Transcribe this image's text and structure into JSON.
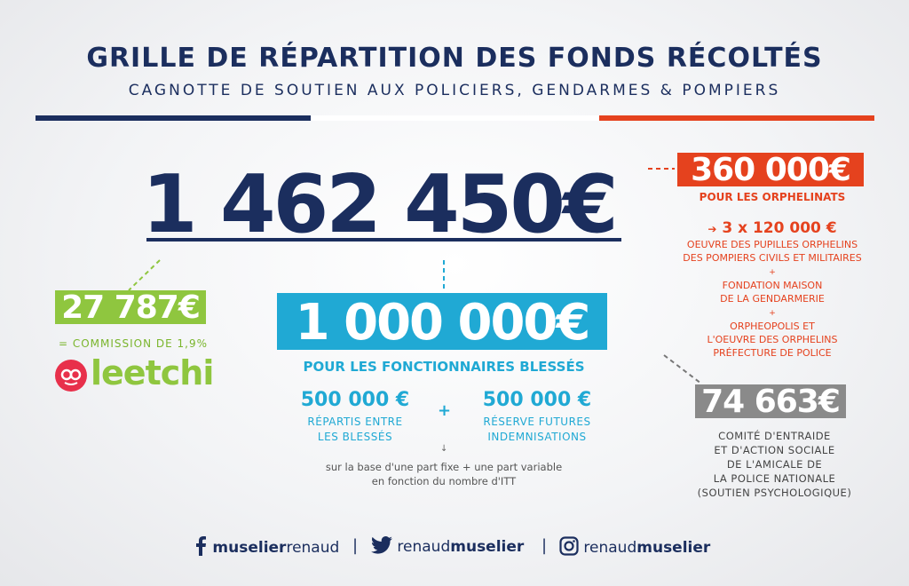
{
  "header": {
    "title": "GRILLE DE RÉPARTITION DES FONDS RÉCOLTÉS",
    "subtitle": "CAGNOTTE DE SOUTIEN AUX POLICIERS, GENDARMES & POMPIERS"
  },
  "colors": {
    "navy": "#1b2e5e",
    "orange": "#e5421e",
    "cyan": "#20a9d4",
    "green": "#8fc63f",
    "gray": "#8a8a8a"
  },
  "total": {
    "amount": "1 462 450€"
  },
  "orphelinats": {
    "amount": "360 000€",
    "label": "POUR LES ORPHELINATS",
    "split": "3 x 120 000 €",
    "beneficiary_1_line1": "OEUVRE DES PUPILLES ORPHELINS",
    "beneficiary_1_line2": "DES POMPIERS CIVILS ET MILITAIRES",
    "plus": "+",
    "beneficiary_2_line1": "FONDATION MAISON",
    "beneficiary_2_line2": "DE LA GENDARMERIE",
    "beneficiary_3_line1": "ORPHEOPOLIS ET",
    "beneficiary_3_line2": "L'OEUVRE DES ORPHELINS",
    "beneficiary_3_line3": "PRÉFECTURE DE POLICE"
  },
  "commission": {
    "amount": "27 787€",
    "label": "= COMMISSION DE 1,9%",
    "logo_text": "leetchi"
  },
  "fonctionnaires": {
    "amount": "1 000 000€",
    "label": "POUR LES FONCTIONNAIRES BLESSÉS",
    "left_amount": "500 000 €",
    "left_line1": "RÉPARTIS ENTRE",
    "left_line2": "LES BLESSÉS",
    "plus": "+",
    "right_amount": "500 000 €",
    "right_line1": "RÉSERVE FUTURES",
    "right_line2": "INDEMNISATIONS",
    "note_arrow": "↓",
    "note_line1": "sur la base d'une part fixe + une part variable",
    "note_line2": "en fonction du nombre d'ITT"
  },
  "comite": {
    "amount": "74 663€",
    "line1": "COMITÉ D'ENTRAIDE",
    "line2": "ET D'ACTION SOCIALE",
    "line3": "DE L'AMICALE DE",
    "line4": "LA POLICE NATIONALE",
    "line5": "(SOUTIEN PSYCHOLOGIQUE)"
  },
  "footer": {
    "facebook_a": "muselier",
    "facebook_b": "renaud",
    "twitter_a": "renaud",
    "twitter_b": "muselier",
    "instagram_a": "renaud",
    "instagram_b": "muselier",
    "separator": "|",
    "icons": [
      "facebook-icon",
      "twitter-icon",
      "instagram-icon"
    ]
  }
}
